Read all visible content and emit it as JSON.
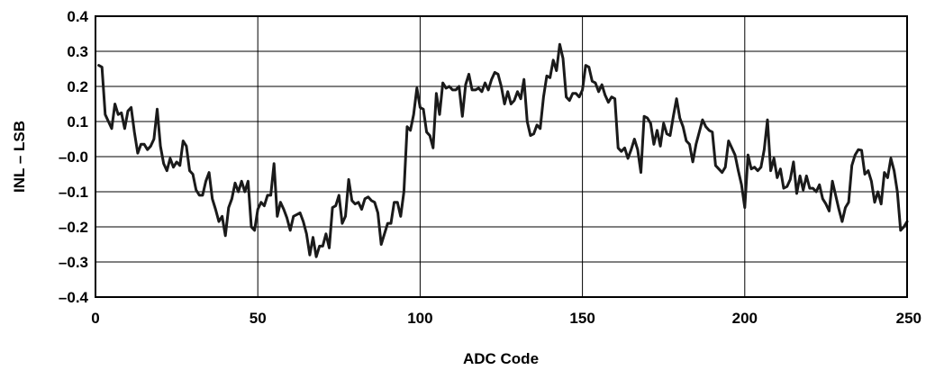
{
  "chart_data": {
    "type": "line",
    "title": "",
    "xlabel": "ADC Code",
    "ylabel": "INL – LSB",
    "xlim": [
      0,
      250
    ],
    "ylim": [
      -0.4,
      0.4
    ],
    "grid": true,
    "xticks": [
      0,
      50,
      100,
      150,
      200,
      250
    ],
    "xtick_labels": [
      "0",
      "50",
      "100",
      "150",
      "200",
      "250"
    ],
    "yticks": [
      0.4,
      0.3,
      0.2,
      0.1,
      0.0,
      -0.1,
      -0.2,
      -0.3,
      -0.4
    ],
    "ytick_labels": [
      "0.4",
      "0.3",
      "0.2",
      "0.1",
      "–0.0",
      "–0.1",
      "–0.2",
      "–0.3",
      "–0.4"
    ],
    "line_color": "#1a1a1a",
    "series": [
      {
        "x": [
          1,
          2,
          3,
          4,
          5,
          6,
          7,
          8,
          9,
          10,
          11,
          12,
          13,
          14,
          15,
          16,
          17,
          18,
          19,
          20,
          21,
          22,
          23,
          24,
          25,
          26,
          27,
          28,
          29,
          30,
          31,
          32,
          33,
          34,
          35,
          36,
          37,
          38,
          39,
          40,
          41,
          42,
          43,
          44,
          45,
          46,
          47,
          48,
          49,
          50,
          51,
          52,
          53,
          54,
          55,
          56,
          57,
          58,
          59,
          60,
          61,
          62,
          63,
          64,
          65,
          66,
          67,
          68,
          69,
          70,
          71,
          72,
          73,
          74,
          75,
          76,
          77,
          78,
          79,
          80,
          81,
          82,
          83,
          84,
          85,
          86,
          87,
          88,
          89,
          90,
          91,
          92,
          93,
          94,
          95,
          96,
          97,
          98,
          99,
          100,
          101,
          102,
          103,
          104,
          105,
          106,
          107,
          108,
          109,
          110,
          111,
          112,
          113,
          114,
          115,
          116,
          117,
          118,
          119,
          120,
          121,
          122,
          123,
          124,
          125,
          126,
          127,
          128,
          129,
          130,
          131,
          132,
          133,
          134,
          135,
          136,
          137,
          138,
          139,
          140,
          141,
          142,
          143,
          144,
          145,
          146,
          147,
          148,
          149,
          150,
          151,
          152,
          153,
          154,
          155,
          156,
          157,
          158,
          159,
          160,
          161,
          162,
          163,
          164,
          165,
          166,
          167,
          168,
          169,
          170,
          171,
          172,
          173,
          174,
          175,
          176,
          177,
          178,
          179,
          180,
          181,
          182,
          183,
          184,
          185,
          186,
          187,
          188,
          189,
          190,
          191,
          192,
          193,
          194,
          195,
          196,
          197,
          198,
          199,
          200,
          201,
          202,
          203,
          204,
          205,
          206,
          207,
          208,
          209,
          210,
          211,
          212,
          213,
          214,
          215,
          216,
          217,
          218,
          219,
          220,
          221,
          222,
          223,
          224,
          225,
          226,
          227,
          228,
          229,
          230,
          231,
          232,
          233,
          234,
          235,
          236,
          237,
          238,
          239,
          240,
          241,
          242,
          243,
          244,
          245,
          246,
          247,
          248,
          249,
          250
        ],
        "y": [
          0.26,
          0.255,
          0.12,
          0.1,
          0.08,
          0.15,
          0.12,
          0.125,
          0.08,
          0.13,
          0.14,
          0.07,
          0.01,
          0.035,
          0.035,
          0.02,
          0.03,
          0.05,
          0.135,
          0.03,
          -0.02,
          -0.04,
          -0.005,
          -0.03,
          -0.015,
          -0.025,
          0.045,
          0.03,
          -0.04,
          -0.05,
          -0.095,
          -0.11,
          -0.11,
          -0.07,
          -0.045,
          -0.12,
          -0.15,
          -0.185,
          -0.17,
          -0.225,
          -0.145,
          -0.12,
          -0.075,
          -0.1,
          -0.07,
          -0.1,
          -0.07,
          -0.2,
          -0.21,
          -0.15,
          -0.13,
          -0.14,
          -0.11,
          -0.11,
          -0.02,
          -0.17,
          -0.13,
          -0.15,
          -0.175,
          -0.21,
          -0.17,
          -0.165,
          -0.16,
          -0.185,
          -0.22,
          -0.28,
          -0.23,
          -0.285,
          -0.255,
          -0.255,
          -0.22,
          -0.26,
          -0.145,
          -0.14,
          -0.11,
          -0.19,
          -0.17,
          -0.065,
          -0.125,
          -0.135,
          -0.13,
          -0.15,
          -0.12,
          -0.115,
          -0.125,
          -0.13,
          -0.16,
          -0.25,
          -0.22,
          -0.19,
          -0.19,
          -0.13,
          -0.13,
          -0.17,
          -0.1,
          0.085,
          0.075,
          0.12,
          0.195,
          0.14,
          0.135,
          0.07,
          0.06,
          0.025,
          0.18,
          0.12,
          0.21,
          0.195,
          0.2,
          0.19,
          0.19,
          0.2,
          0.115,
          0.205,
          0.235,
          0.19,
          0.19,
          0.195,
          0.185,
          0.21,
          0.19,
          0.22,
          0.24,
          0.235,
          0.2,
          0.15,
          0.185,
          0.15,
          0.16,
          0.185,
          0.165,
          0.22,
          0.1,
          0.06,
          0.065,
          0.09,
          0.08,
          0.17,
          0.23,
          0.225,
          0.275,
          0.245,
          0.32,
          0.28,
          0.17,
          0.16,
          0.18,
          0.18,
          0.17,
          0.19,
          0.26,
          0.255,
          0.215,
          0.21,
          0.185,
          0.205,
          0.175,
          0.155,
          0.17,
          0.165,
          0.025,
          0.015,
          0.025,
          -0.005,
          0.02,
          0.05,
          0.02,
          -0.045,
          0.115,
          0.11,
          0.095,
          0.035,
          0.075,
          0.03,
          0.095,
          0.065,
          0.06,
          0.115,
          0.165,
          0.11,
          0.085,
          0.045,
          0.035,
          -0.015,
          0.035,
          0.07,
          0.105,
          0.085,
          0.075,
          0.07,
          -0.025,
          -0.035,
          -0.045,
          -0.03,
          0.045,
          0.025,
          0.005,
          -0.04,
          -0.08,
          -0.145,
          0.005,
          -0.035,
          -0.03,
          -0.04,
          -0.03,
          0.02,
          0.105,
          -0.04,
          -0.005,
          -0.06,
          -0.035,
          -0.09,
          -0.085,
          -0.065,
          -0.015,
          -0.105,
          -0.055,
          -0.095,
          -0.055,
          -0.09,
          -0.09,
          -0.1,
          -0.08,
          -0.12,
          -0.135,
          -0.155,
          -0.07,
          -0.11,
          -0.15,
          -0.185,
          -0.145,
          -0.13,
          -0.025,
          0.005,
          0.02,
          0.018,
          -0.05,
          -0.04,
          -0.07,
          -0.13,
          -0.1,
          -0.135,
          -0.045,
          -0.06,
          -0.005,
          -0.04,
          -0.1,
          -0.21,
          -0.2,
          -0.185
        ]
      }
    ]
  }
}
